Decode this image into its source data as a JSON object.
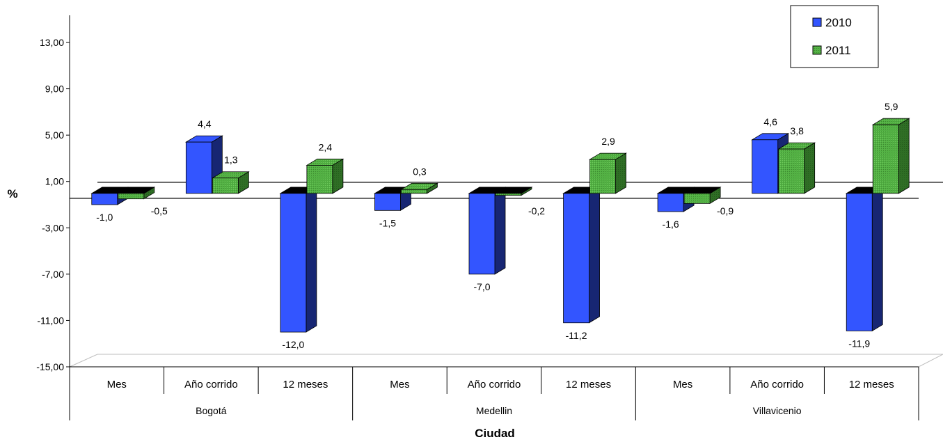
{
  "chart_data": {
    "type": "bar",
    "xlabel": "Ciudad",
    "ylabel": "%",
    "ylim": [
      -15,
      13
    ],
    "yticks": [
      "13,00",
      "9,00",
      "5,00",
      "1,00",
      "-3,00",
      "-7,00",
      "-11,00",
      "-15,00"
    ],
    "ytick_values": [
      13,
      9,
      5,
      1,
      -3,
      -7,
      -11,
      -15
    ],
    "groups": [
      "Bogotá",
      "Medellin",
      "Villavicenio"
    ],
    "categories": [
      "Mes",
      "Año corrido",
      "12 meses",
      "Mes",
      "Año corrido",
      "12 meses",
      "Mes",
      "Año corrido",
      "12 meses"
    ],
    "series": [
      {
        "name": "2010",
        "color": "#3355ff",
        "values": [
          -1.0,
          4.4,
          -12.0,
          -1.5,
          -7.0,
          -11.2,
          -1.6,
          4.6,
          -11.9
        ],
        "labels": [
          "-1,0",
          "4,4",
          "-12,0",
          "-1,5",
          "-7,0",
          "-11,2",
          "-1,6",
          "4,6",
          "-11,9"
        ]
      },
      {
        "name": "2011",
        "color": "#44aa33",
        "values": [
          -0.5,
          1.3,
          2.4,
          0.3,
          -0.2,
          2.9,
          -0.9,
          3.8,
          5.9
        ],
        "labels": [
          "-0,5",
          "1,3",
          "2,4",
          "0,3",
          "-0,2",
          "2,9",
          "-0,9",
          "3,8",
          "5,9"
        ]
      }
    ],
    "legend": "top-right",
    "grid": false,
    "three_d": true
  }
}
